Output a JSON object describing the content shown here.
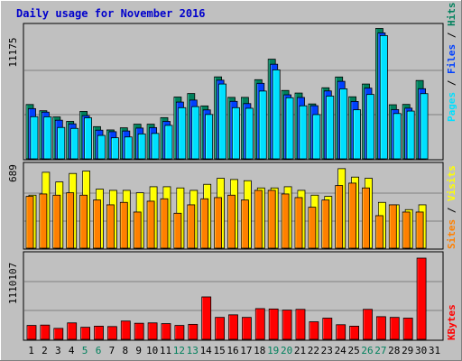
{
  "title": "Daily usage for November 2016",
  "colors": {
    "background": "#c0c0c0",
    "title": "#0000cc",
    "hits": "#00805c",
    "files": "#0040ff",
    "pages": "#00e0ff",
    "visits": "#ffff00",
    "sites": "#ff8000",
    "kbytes": "#ff0000",
    "weekend_label": "#00805c",
    "weekday_label": "#000000"
  },
  "chart_data": [
    {
      "type": "bar",
      "panel": "hits-files-pages",
      "ymax_label": "11175",
      "ylim": [
        0,
        11175
      ],
      "legend": {
        "pages": "Pages",
        "files": "Files",
        "hits": "Hits",
        "separator": "/"
      },
      "categories": [
        "1",
        "2",
        "3",
        "4",
        "5",
        "6",
        "7",
        "8",
        "9",
        "10",
        "11",
        "12",
        "13",
        "14",
        "15",
        "16",
        "17",
        "18",
        "19",
        "20",
        "21",
        "22",
        "23",
        "24",
        "25",
        "26",
        "27",
        "28",
        "29",
        "30",
        "31"
      ],
      "weekend_days": [
        "5",
        "6",
        "12",
        "13",
        "19",
        "20",
        "26",
        "27"
      ],
      "series": [
        {
          "name": "Hits",
          "values": [
            4640,
            4110,
            3580,
            3200,
            4050,
            2750,
            2470,
            2650,
            2960,
            2960,
            3520,
            5280,
            5580,
            4520,
            7000,
            5250,
            5250,
            6760,
            8510,
            5840,
            5620,
            4690,
            6070,
            6990,
            5300,
            6390,
            11140,
            4620,
            4650,
            6690,
            0
          ]
        },
        {
          "name": "Files",
          "values": [
            4290,
            3990,
            3300,
            2990,
            3690,
            2450,
            2320,
            2380,
            2630,
            2670,
            3200,
            4850,
            5020,
            4180,
            6720,
            4910,
            4720,
            6450,
            8080,
            5470,
            5240,
            4540,
            5800,
            6620,
            4900,
            6040,
            10760,
            4210,
            4330,
            5990,
            0
          ]
        },
        {
          "name": "Pages",
          "values": [
            3600,
            3590,
            2680,
            2600,
            3500,
            2000,
            1800,
            1870,
            2130,
            2170,
            2860,
            4370,
            4460,
            3790,
            6390,
            4370,
            4320,
            5790,
            7600,
            5220,
            4530,
            3780,
            5360,
            5980,
            4190,
            5500,
            10530,
            3870,
            4080,
            5570,
            0
          ]
        }
      ]
    },
    {
      "type": "bar",
      "panel": "visits-sites",
      "ymax_label": "689",
      "ylim": [
        0,
        689
      ],
      "legend": {
        "sites": "Sites",
        "visits": "Visits",
        "separator": "/"
      },
      "categories": [
        "1",
        "2",
        "3",
        "4",
        "5",
        "6",
        "7",
        "8",
        "9",
        "10",
        "11",
        "12",
        "13",
        "14",
        "15",
        "16",
        "17",
        "18",
        "19",
        "20",
        "21",
        "22",
        "23",
        "24",
        "25",
        "26",
        "27",
        "28",
        "29",
        "30",
        "31"
      ],
      "series": [
        {
          "name": "Visits",
          "values": [
            440,
            630,
            550,
            620,
            640,
            490,
            480,
            480,
            460,
            510,
            510,
            500,
            480,
            530,
            580,
            570,
            560,
            500,
            500,
            510,
            480,
            440,
            430,
            660,
            590,
            580,
            380,
            360,
            320,
            360,
            0
          ]
        },
        {
          "name": "Sites",
          "values": [
            430,
            450,
            440,
            460,
            440,
            400,
            360,
            380,
            300,
            390,
            410,
            290,
            360,
            410,
            420,
            440,
            400,
            480,
            480,
            450,
            420,
            340,
            400,
            520,
            540,
            500,
            270,
            360,
            300,
            300,
            0
          ]
        }
      ]
    },
    {
      "type": "bar",
      "panel": "kbytes",
      "ymax_label": "1110107",
      "ylim": [
        0,
        1110107
      ],
      "legend": {
        "kbytes": "KBytes"
      },
      "categories": [
        "1",
        "2",
        "3",
        "4",
        "5",
        "6",
        "7",
        "8",
        "9",
        "10",
        "11",
        "12",
        "13",
        "14",
        "15",
        "16",
        "17",
        "18",
        "19",
        "20",
        "21",
        "22",
        "23",
        "24",
        "25",
        "26",
        "27",
        "28",
        "29",
        "30",
        "31"
      ],
      "series": [
        {
          "name": "KBytes",
          "values": [
            190000,
            195000,
            150000,
            225000,
            165000,
            180000,
            175000,
            250000,
            220000,
            225000,
            215000,
            190000,
            205000,
            580000,
            300000,
            335000,
            300000,
            420000,
            415000,
            400000,
            410000,
            240000,
            290000,
            200000,
            180000,
            410000,
            310000,
            300000,
            290000,
            1110107,
            0
          ]
        }
      ]
    }
  ]
}
